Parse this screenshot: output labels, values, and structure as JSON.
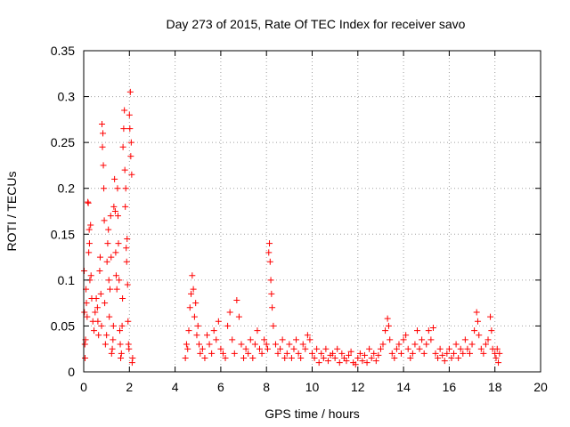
{
  "chart_data": {
    "type": "scatter",
    "title": "Day 273 of 2015, Rate Of TEC Index for receiver savo",
    "xlabel": "GPS time / hours",
    "ylabel": "ROTI / TECUs",
    "xlim": [
      0,
      20
    ],
    "ylim": [
      0,
      0.35
    ],
    "x_ticks": [
      "0",
      "2",
      "4",
      "6",
      "8",
      "10",
      "12",
      "14",
      "16",
      "18",
      "20"
    ],
    "y_ticks": [
      "0",
      "0.05",
      "0.1",
      "0.15",
      "0.2",
      "0.25",
      "0.3",
      "0.35"
    ],
    "grid": true,
    "marker": "+",
    "series_color": "#ff0000",
    "series": [
      {
        "points": [
          [
            0.02,
            0.11
          ],
          [
            0.03,
            0.065
          ],
          [
            0.05,
            0.03
          ],
          [
            0.06,
            0.015
          ],
          [
            0.08,
            0.035
          ],
          [
            0.1,
            0.09
          ],
          [
            0.12,
            0.075
          ],
          [
            0.15,
            0.06
          ],
          [
            0.18,
            0.185
          ],
          [
            0.2,
            0.184
          ],
          [
            0.22,
            0.13
          ],
          [
            0.24,
            0.155
          ],
          [
            0.25,
            0.14
          ],
          [
            0.27,
            0.1
          ],
          [
            0.3,
            0.16
          ],
          [
            0.32,
            0.105
          ],
          [
            0.35,
            0.08
          ],
          [
            0.4,
            0.055
          ],
          [
            0.45,
            0.045
          ],
          [
            0.5,
            0.065
          ],
          [
            0.55,
            0.08
          ],
          [
            0.6,
            0.07
          ],
          [
            0.62,
            0.055
          ],
          [
            0.65,
            0.04
          ],
          [
            0.7,
            0.11
          ],
          [
            0.72,
            0.125
          ],
          [
            0.75,
            0.085
          ],
          [
            0.78,
            0.05
          ],
          [
            0.8,
            0.27
          ],
          [
            0.82,
            0.245
          ],
          [
            0.84,
            0.26
          ],
          [
            0.86,
            0.225
          ],
          [
            0.88,
            0.2
          ],
          [
            0.9,
            0.165
          ],
          [
            0.92,
            0.075
          ],
          [
            0.95,
            0.03
          ],
          [
            1.0,
            0.04
          ],
          [
            1.02,
            0.12
          ],
          [
            1.05,
            0.14
          ],
          [
            1.08,
            0.155
          ],
          [
            1.1,
            0.1
          ],
          [
            1.12,
            0.06
          ],
          [
            1.15,
            0.09
          ],
          [
            1.18,
            0.17
          ],
          [
            1.2,
            0.125
          ],
          [
            1.22,
            0.02
          ],
          [
            1.25,
            0.025
          ],
          [
            1.28,
            0.035
          ],
          [
            1.3,
            0.05
          ],
          [
            1.32,
            0.18
          ],
          [
            1.35,
            0.21
          ],
          [
            1.38,
            0.175
          ],
          [
            1.4,
            0.13
          ],
          [
            1.42,
            0.105
          ],
          [
            1.45,
            0.09
          ],
          [
            1.48,
            0.2
          ],
          [
            1.5,
            0.17
          ],
          [
            1.52,
            0.14
          ],
          [
            1.55,
            0.1
          ],
          [
            1.58,
            0.045
          ],
          [
            1.6,
            0.03
          ],
          [
            1.62,
            0.015
          ],
          [
            1.65,
            0.02
          ],
          [
            1.68,
            0.05
          ],
          [
            1.7,
            0.08
          ],
          [
            1.72,
            0.245
          ],
          [
            1.75,
            0.265
          ],
          [
            1.78,
            0.285
          ],
          [
            1.8,
            0.22
          ],
          [
            1.82,
            0.18
          ],
          [
            1.84,
            0.2
          ],
          [
            1.86,
            0.135
          ],
          [
            1.88,
            0.12
          ],
          [
            1.9,
            0.145
          ],
          [
            1.92,
            0.095
          ],
          [
            1.94,
            0.055
          ],
          [
            1.96,
            0.03
          ],
          [
            1.98,
            0.025
          ],
          [
            2.0,
            0.28
          ],
          [
            2.02,
            0.265
          ],
          [
            2.04,
            0.305
          ],
          [
            2.06,
            0.235
          ],
          [
            2.08,
            0.25
          ],
          [
            2.1,
            0.215
          ],
          [
            2.12,
            0.01
          ],
          [
            2.14,
            0.015
          ],
          [
            4.45,
            0.015
          ],
          [
            4.5,
            0.03
          ],
          [
            4.55,
            0.025
          ],
          [
            4.6,
            0.045
          ],
          [
            4.65,
            0.07
          ],
          [
            4.7,
            0.085
          ],
          [
            4.75,
            0.105
          ],
          [
            4.8,
            0.09
          ],
          [
            4.85,
            0.06
          ],
          [
            4.9,
            0.075
          ],
          [
            4.95,
            0.04
          ],
          [
            5.0,
            0.05
          ],
          [
            5.05,
            0.03
          ],
          [
            5.1,
            0.02
          ],
          [
            5.2,
            0.025
          ],
          [
            5.3,
            0.015
          ],
          [
            5.4,
            0.04
          ],
          [
            5.5,
            0.03
          ],
          [
            5.6,
            0.02
          ],
          [
            5.7,
            0.045
          ],
          [
            5.8,
            0.035
          ],
          [
            5.9,
            0.055
          ],
          [
            6.0,
            0.025
          ],
          [
            6.1,
            0.02
          ],
          [
            6.2,
            0.015
          ],
          [
            6.3,
            0.05
          ],
          [
            6.4,
            0.065
          ],
          [
            6.5,
            0.035
          ],
          [
            6.6,
            0.02
          ],
          [
            6.7,
            0.078
          ],
          [
            6.8,
            0.06
          ],
          [
            6.9,
            0.03
          ],
          [
            7.0,
            0.015
          ],
          [
            7.1,
            0.025
          ],
          [
            7.2,
            0.02
          ],
          [
            7.3,
            0.035
          ],
          [
            7.4,
            0.015
          ],
          [
            7.5,
            0.03
          ],
          [
            7.6,
            0.045
          ],
          [
            7.7,
            0.025
          ],
          [
            7.8,
            0.02
          ],
          [
            7.9,
            0.035
          ],
          [
            8.0,
            0.03
          ],
          [
            8.05,
            0.025
          ],
          [
            8.1,
            0.13
          ],
          [
            8.13,
            0.14
          ],
          [
            8.16,
            0.12
          ],
          [
            8.19,
            0.1
          ],
          [
            8.22,
            0.085
          ],
          [
            8.25,
            0.07
          ],
          [
            8.3,
            0.05
          ],
          [
            8.4,
            0.03
          ],
          [
            8.5,
            0.02
          ],
          [
            8.6,
            0.025
          ],
          [
            8.7,
            0.035
          ],
          [
            8.8,
            0.015
          ],
          [
            8.9,
            0.02
          ],
          [
            9.0,
            0.03
          ],
          [
            9.1,
            0.015
          ],
          [
            9.2,
            0.025
          ],
          [
            9.3,
            0.035
          ],
          [
            9.4,
            0.02
          ],
          [
            9.5,
            0.015
          ],
          [
            9.6,
            0.03
          ],
          [
            9.7,
            0.025
          ],
          [
            9.8,
            0.04
          ],
          [
            9.9,
            0.035
          ],
          [
            10.0,
            0.02
          ],
          [
            10.1,
            0.015
          ],
          [
            10.2,
            0.025
          ],
          [
            10.3,
            0.01
          ],
          [
            10.4,
            0.02
          ],
          [
            10.5,
            0.015
          ],
          [
            10.6,
            0.025
          ],
          [
            10.7,
            0.012
          ],
          [
            10.8,
            0.018
          ],
          [
            10.9,
            0.02
          ],
          [
            11.0,
            0.015
          ],
          [
            11.1,
            0.025
          ],
          [
            11.2,
            0.01
          ],
          [
            11.3,
            0.02
          ],
          [
            11.4,
            0.015
          ],
          [
            11.5,
            0.012
          ],
          [
            11.6,
            0.018
          ],
          [
            11.7,
            0.022
          ],
          [
            11.8,
            0.01
          ],
          [
            11.9,
            0.008
          ],
          [
            12.0,
            0.015
          ],
          [
            12.1,
            0.02
          ],
          [
            12.2,
            0.012
          ],
          [
            12.3,
            0.018
          ],
          [
            12.4,
            0.01
          ],
          [
            12.5,
            0.025
          ],
          [
            12.6,
            0.015
          ],
          [
            12.7,
            0.02
          ],
          [
            12.8,
            0.012
          ],
          [
            12.9,
            0.018
          ],
          [
            13.0,
            0.025
          ],
          [
            13.1,
            0.03
          ],
          [
            13.2,
            0.045
          ],
          [
            13.3,
            0.058
          ],
          [
            13.35,
            0.05
          ],
          [
            13.4,
            0.035
          ],
          [
            13.5,
            0.02
          ],
          [
            13.6,
            0.015
          ],
          [
            13.7,
            0.025
          ],
          [
            13.8,
            0.03
          ],
          [
            13.9,
            0.02
          ],
          [
            14.0,
            0.035
          ],
          [
            14.1,
            0.04
          ],
          [
            14.2,
            0.025
          ],
          [
            14.3,
            0.015
          ],
          [
            14.4,
            0.02
          ],
          [
            14.5,
            0.03
          ],
          [
            14.6,
            0.045
          ],
          [
            14.7,
            0.025
          ],
          [
            14.8,
            0.035
          ],
          [
            14.9,
            0.02
          ],
          [
            15.0,
            0.03
          ],
          [
            15.1,
            0.045
          ],
          [
            15.2,
            0.035
          ],
          [
            15.3,
            0.048
          ],
          [
            15.4,
            0.02
          ],
          [
            15.5,
            0.015
          ],
          [
            15.6,
            0.025
          ],
          [
            15.7,
            0.018
          ],
          [
            15.8,
            0.012
          ],
          [
            15.9,
            0.02
          ],
          [
            16.0,
            0.025
          ],
          [
            16.1,
            0.015
          ],
          [
            16.2,
            0.02
          ],
          [
            16.3,
            0.03
          ],
          [
            16.4,
            0.015
          ],
          [
            16.5,
            0.025
          ],
          [
            16.6,
            0.02
          ],
          [
            16.7,
            0.035
          ],
          [
            16.8,
            0.025
          ],
          [
            16.9,
            0.02
          ],
          [
            17.0,
            0.03
          ],
          [
            17.1,
            0.045
          ],
          [
            17.2,
            0.065
          ],
          [
            17.25,
            0.055
          ],
          [
            17.3,
            0.04
          ],
          [
            17.4,
            0.025
          ],
          [
            17.5,
            0.02
          ],
          [
            17.6,
            0.03
          ],
          [
            17.7,
            0.035
          ],
          [
            17.8,
            0.06
          ],
          [
            17.85,
            0.045
          ],
          [
            17.9,
            0.025
          ],
          [
            18.0,
            0.02
          ],
          [
            18.05,
            0.015
          ],
          [
            18.1,
            0.025
          ],
          [
            18.15,
            0.01
          ],
          [
            18.2,
            0.02
          ]
        ]
      }
    ]
  }
}
